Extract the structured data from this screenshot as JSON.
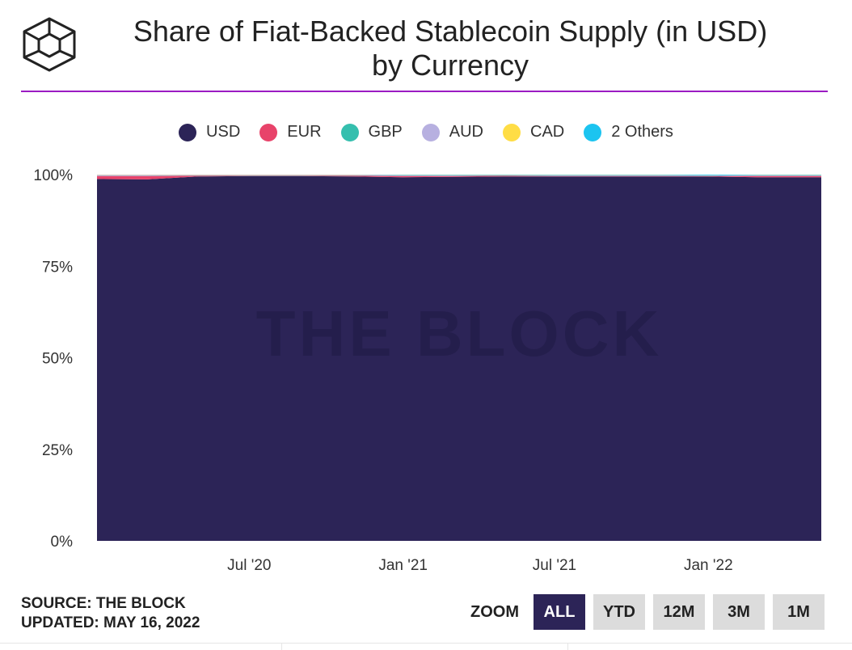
{
  "title_line1": "Share of Fiat-Backed Stablecoin Supply (in USD)",
  "title_line2": "by Currency",
  "watermark": "THE BLOCK",
  "accent_color": "#9b1bc2",
  "legend": [
    {
      "label": "USD",
      "color": "#2c2457"
    },
    {
      "label": "EUR",
      "color": "#e8436a"
    },
    {
      "label": "GBP",
      "color": "#35bfae"
    },
    {
      "label": "AUD",
      "color": "#b7b0e0"
    },
    {
      "label": "CAD",
      "color": "#ffdd45"
    },
    {
      "label": "2 Others",
      "color": "#1cc4f0"
    }
  ],
  "footer": {
    "source": "SOURCE: THE BLOCK",
    "updated": "UPDATED: MAY 16, 2022"
  },
  "zoom": {
    "label": "ZOOM",
    "buttons": [
      "ALL",
      "YTD",
      "12M",
      "3M",
      "1M"
    ],
    "active": "ALL"
  },
  "chart_data": {
    "type": "area",
    "stacking": "percent",
    "x": [
      "2020-01-01",
      "2020-03-01",
      "2020-05-01",
      "2020-07-01",
      "2020-09-01",
      "2020-11-01",
      "2021-01-01",
      "2021-03-01",
      "2021-05-01",
      "2021-07-01",
      "2021-09-01",
      "2021-11-01",
      "2022-01-01",
      "2022-03-01",
      "2022-05-16"
    ],
    "x_ticks": [
      "Jul '20",
      "Jan '21",
      "Jul '21",
      "Jan '22"
    ],
    "x_tick_dates": [
      "2020-07-01",
      "2021-01-01",
      "2021-07-01",
      "2022-01-01"
    ],
    "y_ticks": [
      "0%",
      "25%",
      "50%",
      "75%",
      "100%"
    ],
    "ylim": [
      0,
      100
    ],
    "grid": false,
    "legend_position": "top",
    "series": [
      {
        "name": "USD",
        "values": [
          98.8,
          98.7,
          99.5,
          99.6,
          99.6,
          99.5,
          99.3,
          99.4,
          99.5,
          99.5,
          99.5,
          99.5,
          99.5,
          99.3,
          99.3
        ]
      },
      {
        "name": "EUR",
        "values": [
          0.8,
          0.9,
          0.2,
          0.1,
          0.1,
          0.2,
          0.3,
          0.2,
          0.2,
          0.1,
          0.1,
          0.1,
          0.1,
          0.3,
          0.3
        ]
      },
      {
        "name": "GBP",
        "values": [
          0.05,
          0.05,
          0.05,
          0.05,
          0.05,
          0.05,
          0.05,
          0.05,
          0.05,
          0.05,
          0.05,
          0.05,
          0.05,
          0.05,
          0.05
        ]
      },
      {
        "name": "AUD",
        "values": [
          0.3,
          0.3,
          0.2,
          0.2,
          0.2,
          0.2,
          0.2,
          0.2,
          0.1,
          0.2,
          0.2,
          0.2,
          0.1,
          0.2,
          0.2
        ]
      },
      {
        "name": "CAD",
        "values": [
          0.05,
          0.05,
          0.05,
          0.05,
          0.05,
          0.05,
          0.05,
          0.05,
          0.05,
          0.05,
          0.05,
          0.05,
          0.05,
          0.05,
          0.05
        ]
      },
      {
        "name": "2 Others",
        "values": [
          0.0,
          0.0,
          0.0,
          0.0,
          0.0,
          0.0,
          0.1,
          0.1,
          0.1,
          0.1,
          0.1,
          0.1,
          0.2,
          0.1,
          0.1
        ]
      }
    ]
  }
}
